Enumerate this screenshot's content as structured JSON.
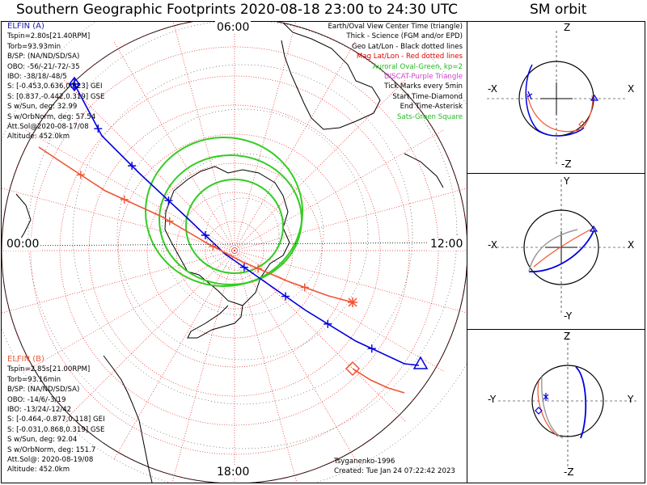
{
  "title": "Southern Geographic Footprints 2020-08-18 23:00 to 24:30 UTC",
  "orbit_title": "SM orbit",
  "clock_labels": {
    "top": "06:00",
    "left": "00:00",
    "right": "12:00",
    "bottom": "18:00"
  },
  "elfin_a": {
    "name": "ELFIN (A)",
    "lines": [
      "Tspin=2.80s[21.40RPM]",
      "Torb=93.93min",
      "B/SP: (NA/ND/SD/SA)",
      "OBO: -56/-21/-72/-35",
      "IBO: -38/18/-48/5",
      "S: [-0.453,0.636,0.623] GEI",
      "S: [0.837,-0.442,0.319] GSE",
      "S w/Sun, deg: 32.99",
      "S w/OrbNorm, deg: 57.54",
      "Att.Sol@2020-08-17/08",
      "Altitude: 452.0km"
    ]
  },
  "elfin_b": {
    "name": "ELFIN (B)",
    "lines": [
      "Tspin=2.85s[21.00RPM]",
      "Torb=93.16min",
      "B/SP: (NA/ND/SD/SA)",
      "OBO: -14/6/-3/19",
      "IBO: -13/24/-12/42",
      "S: [-0.464,-0.877,0.118] GEI",
      "S: [-0.031,0.868,0.319] GSE",
      "S w/Sun, deg: 92.04",
      "S w/OrbNorm, deg: 151.7",
      "Att.Sol@: 2020-08-19/08",
      "Altitude: 452.0km"
    ]
  },
  "legend": [
    {
      "text": "Earth/Oval View Center Time (triangle)",
      "color": "#000000"
    },
    {
      "text": "Thick - Science (FGM and/or EPD)",
      "color": "#000000"
    },
    {
      "text": "Geo Lat/Lon - Black dotted lines",
      "color": "#000000"
    },
    {
      "text": "Mag Lat/Lon - Red dotted lines",
      "color": "#e00000"
    },
    {
      "text": "Auroral Oval-Green, kp=2",
      "color": "#22bb22"
    },
    {
      "text": "DISCAT-Purple Triangle",
      "color": "#cc44cc"
    },
    {
      "text": "Tick Marks every 5min",
      "color": "#000000"
    },
    {
      "text": "Start Time-Diamond",
      "color": "#000000"
    },
    {
      "text": "End Time-Asterisk",
      "color": "#000000"
    },
    {
      "text": "Sats-Green Square",
      "color": "#22bb22"
    }
  ],
  "credits": [
    "Tsyganenko-1996",
    "Created: Tue Jan 24 07:22:42 2023"
  ],
  "orbit_panels": [
    {
      "top": "Z",
      "bottom": "-Z",
      "left": "-X",
      "right": "X"
    },
    {
      "top": "Y",
      "bottom": "-Y",
      "left": "-X",
      "right": "X"
    },
    {
      "top": "Z",
      "bottom": "-Z",
      "left": "-Y",
      "right": "Y"
    }
  ],
  "colors": {
    "sat_a": "#0000dd",
    "sat_b": "#ee5533",
    "oval": "#33cc22",
    "grid_mag": "#e02020",
    "grid_geo": "#000000"
  }
}
